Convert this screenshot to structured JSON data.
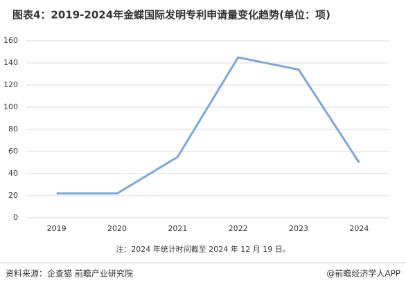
{
  "chart_data": {
    "type": "line",
    "title": "图表4：2019-2024年金蝶国际发明专利申请量变化趋势(单位：项)",
    "categories": [
      "2019",
      "2020",
      "2021",
      "2022",
      "2023",
      "2024"
    ],
    "series": [
      {
        "name": "发明专利申请量",
        "color": "#7aa6dc",
        "values": [
          22,
          22,
          55,
          145,
          134,
          50
        ]
      }
    ],
    "ylim": [
      0,
      160
    ],
    "yticks": [
      0,
      20,
      40,
      60,
      80,
      100,
      120,
      140,
      160
    ],
    "grid": true,
    "note": "注：2024 年统计时间截至 2024 年 12 月 19 日。",
    "source": "资料来源：企查猫 前瞻产业研究院",
    "brand": "@前瞻经济学人APP"
  }
}
